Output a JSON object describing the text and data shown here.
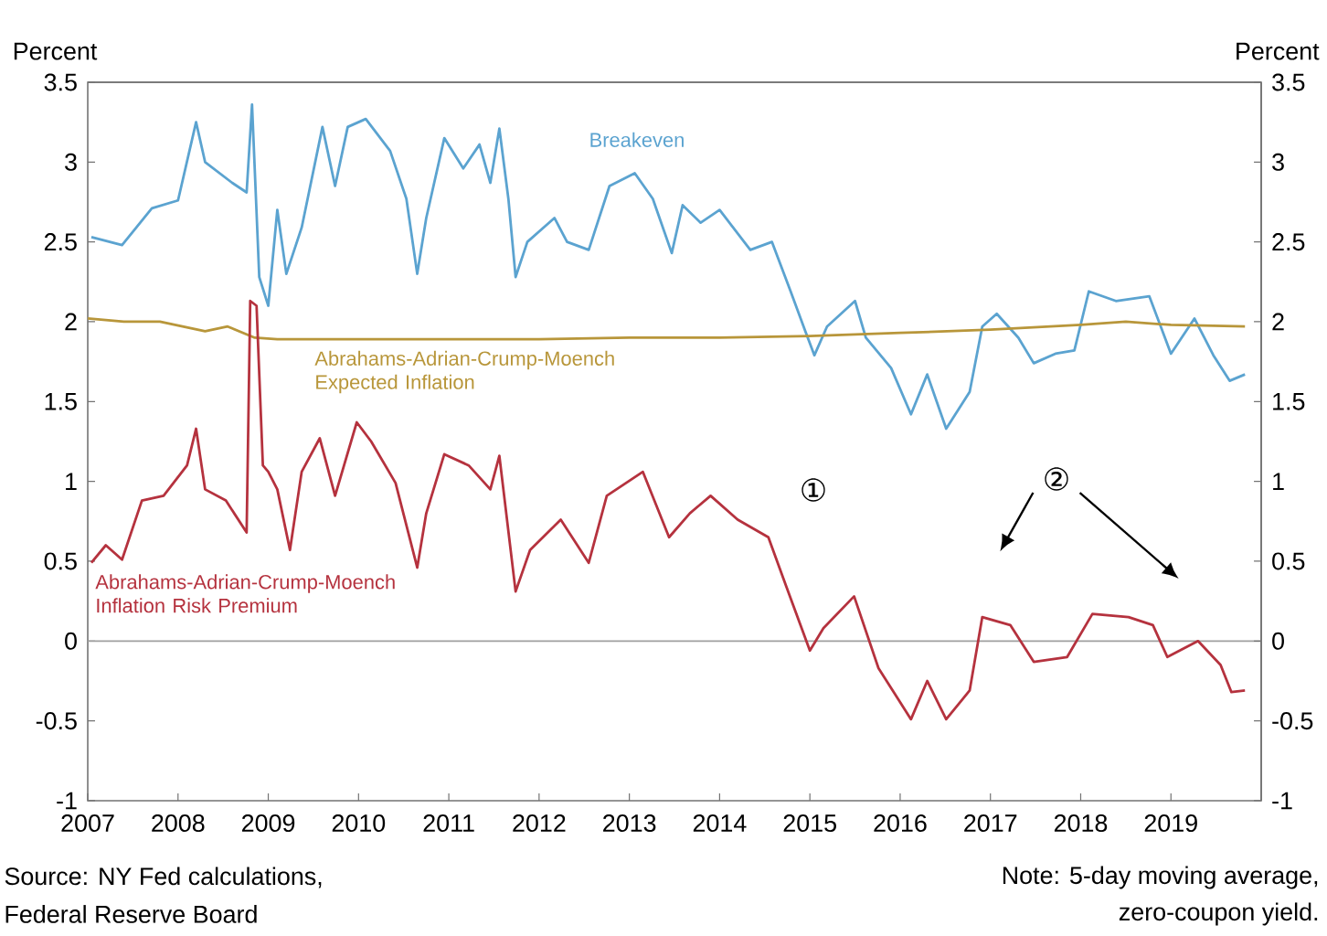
{
  "chart_data": {
    "type": "line",
    "ylabel": "Percent",
    "y2label": "Percent",
    "xlim": [
      2007,
      2020
    ],
    "xticks": [
      2007,
      2008,
      2009,
      2010,
      2011,
      2012,
      2013,
      2014,
      2015,
      2016,
      2017,
      2018,
      2019
    ],
    "ylim": [
      -1,
      3.5
    ],
    "yticks": [
      -1,
      -0.5,
      0,
      0.5,
      1,
      1.5,
      2,
      2.5,
      3,
      3.5
    ],
    "y2lim": [
      -1,
      3.5
    ],
    "y2ticks": [
      -1,
      -0.5,
      0,
      0.5,
      1,
      1.5,
      2,
      2.5,
      3,
      3.5
    ],
    "grid": false,
    "legend": false,
    "marker": "none",
    "line_style": "solid",
    "ref_lines": [
      {
        "axis": "y",
        "value": 0,
        "color": "#a0a0a0"
      }
    ],
    "series": [
      {
        "name": "Breakeven",
        "color": "#5ba3d0",
        "x": [
          2007.04,
          2007.38,
          2007.71,
          2008.0,
          2008.2,
          2008.3,
          2008.6,
          2008.76,
          2008.82,
          2008.9,
          2009.0,
          2009.1,
          2009.2,
          2009.37,
          2009.6,
          2009.74,
          2009.88,
          2010.08,
          2010.35,
          2010.53,
          2010.65,
          2010.75,
          2010.95,
          2011.16,
          2011.34,
          2011.46,
          2011.56,
          2011.66,
          2011.74,
          2011.87,
          2012.17,
          2012.31,
          2012.55,
          2012.78,
          2013.06,
          2013.26,
          2013.47,
          2013.59,
          2013.79,
          2014.0,
          2014.34,
          2014.58,
          2014.78,
          2014.95,
          2015.05,
          2015.19,
          2015.5,
          2015.62,
          2015.9,
          2016.12,
          2016.3,
          2016.51,
          2016.77,
          2016.91,
          2017.07,
          2017.31,
          2017.48,
          2017.72,
          2017.93,
          2018.09,
          2018.39,
          2018.76,
          2019.0,
          2019.26,
          2019.47,
          2019.65,
          2019.82
        ],
        "values": [
          2.53,
          2.48,
          2.71,
          2.76,
          3.25,
          3.0,
          2.87,
          2.81,
          3.36,
          2.28,
          2.1,
          2.7,
          2.3,
          2.59,
          3.22,
          2.85,
          3.22,
          3.27,
          3.07,
          2.77,
          2.3,
          2.65,
          3.15,
          2.96,
          3.11,
          2.87,
          3.21,
          2.77,
          2.28,
          2.5,
          2.65,
          2.5,
          2.45,
          2.85,
          2.93,
          2.77,
          2.43,
          2.73,
          2.62,
          2.7,
          2.45,
          2.5,
          2.2,
          1.94,
          1.79,
          1.97,
          2.13,
          1.9,
          1.71,
          1.42,
          1.67,
          1.33,
          1.56,
          1.97,
          2.05,
          1.9,
          1.74,
          1.8,
          1.82,
          2.19,
          2.13,
          2.16,
          1.8,
          2.02,
          1.79,
          1.63,
          1.67
        ]
      },
      {
        "name": "Abrahams-Adrian-Crump-Moench Expected Inflation",
        "color": "#b8963a",
        "x": [
          2007.0,
          2007.4,
          2007.8,
          2008.3,
          2008.55,
          2008.85,
          2009.1,
          2010,
          2011,
          2012,
          2013,
          2014,
          2015,
          2016,
          2017,
          2018,
          2018.5,
          2019,
          2019.82
        ],
        "values": [
          2.02,
          2.0,
          2.0,
          1.94,
          1.97,
          1.9,
          1.89,
          1.89,
          1.89,
          1.89,
          1.9,
          1.9,
          1.91,
          1.93,
          1.95,
          1.98,
          2.0,
          1.98,
          1.97
        ]
      },
      {
        "name": "Abrahams-Adrian-Crump-Moench Inflation Risk Premium",
        "color": "#b5323e",
        "x": [
          2007.04,
          2007.2,
          2007.38,
          2007.6,
          2007.84,
          2008.1,
          2008.2,
          2008.3,
          2008.53,
          2008.76,
          2008.8,
          2008.87,
          2008.94,
          2009.0,
          2009.1,
          2009.24,
          2009.37,
          2009.57,
          2009.74,
          2009.98,
          2010.14,
          2010.41,
          2010.65,
          2010.75,
          2010.95,
          2011.22,
          2011.46,
          2011.56,
          2011.74,
          2011.9,
          2012.24,
          2012.55,
          2012.75,
          2013.15,
          2013.44,
          2013.67,
          2013.9,
          2014.2,
          2014.54,
          2014.74,
          2015.0,
          2015.15,
          2015.49,
          2015.76,
          2016.12,
          2016.3,
          2016.51,
          2016.77,
          2016.91,
          2017.22,
          2017.48,
          2017.85,
          2018.13,
          2018.53,
          2018.8,
          2018.96,
          2019.3,
          2019.55,
          2019.67,
          2019.82
        ],
        "values": [
          0.49,
          0.6,
          0.51,
          0.88,
          0.91,
          1.1,
          1.33,
          0.95,
          0.88,
          0.68,
          2.13,
          2.1,
          1.1,
          1.06,
          0.95,
          0.57,
          1.06,
          1.27,
          0.91,
          1.37,
          1.25,
          0.99,
          0.46,
          0.8,
          1.17,
          1.1,
          0.95,
          1.16,
          0.31,
          0.57,
          0.76,
          0.49,
          0.91,
          1.06,
          0.65,
          0.8,
          0.91,
          0.76,
          0.65,
          0.34,
          -0.06,
          0.08,
          0.28,
          -0.17,
          -0.49,
          -0.25,
          -0.49,
          -0.31,
          0.15,
          0.1,
          -0.13,
          -0.1,
          0.17,
          0.15,
          0.1,
          -0.1,
          0.0,
          -0.15,
          -0.32,
          -0.31
        ]
      }
    ],
    "annotations": [
      "①",
      "②",
      "Source: NY Fed calculations,",
      "Federal Reserve Board",
      "Note: 5-day moving average,",
      "zero-coupon yield."
    ]
  }
}
